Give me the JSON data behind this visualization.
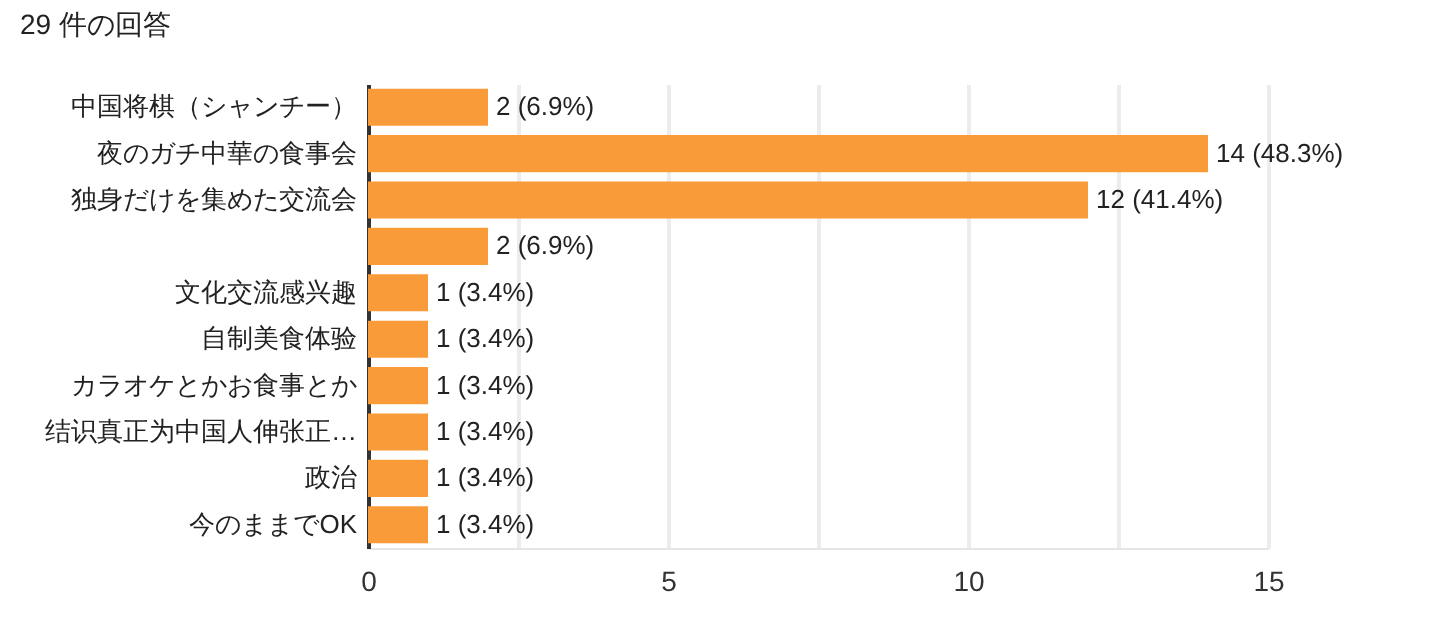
{
  "chart_data": {
    "type": "bar",
    "orientation": "horizontal",
    "title": "29 件の回答",
    "categories": [
      "中国将棋（シャンチー）",
      "夜のガチ中華の食事会",
      "独身だけを集めた交流会",
      null,
      "文化交流感兴趣",
      "自制美食体验",
      "カラオケとかお食事とか",
      "结识真正为中国人伸张正…",
      "政治",
      "今のままでOK"
    ],
    "values": [
      2,
      14,
      12,
      2,
      1,
      1,
      1,
      1,
      1,
      1
    ],
    "value_labels": [
      "2 (6.9%)",
      "14 (48.3%)",
      "12 (41.4%)",
      "2 (6.9%)",
      "1 (3.4%)",
      "1 (3.4%)",
      "1 (3.4%)",
      "1 (3.4%)",
      "1 (3.4%)",
      "1 (3.4%)"
    ],
    "color": "#f99b38",
    "xlim": [
      0,
      15
    ],
    "xticks": [
      0,
      {
        "value": 2.5,
        "label": null
      },
      5,
      {
        "value": 7.5,
        "label": null
      },
      10,
      {
        "value": 12.5,
        "label": null
      },
      15
    ],
    "grid": "x"
  }
}
